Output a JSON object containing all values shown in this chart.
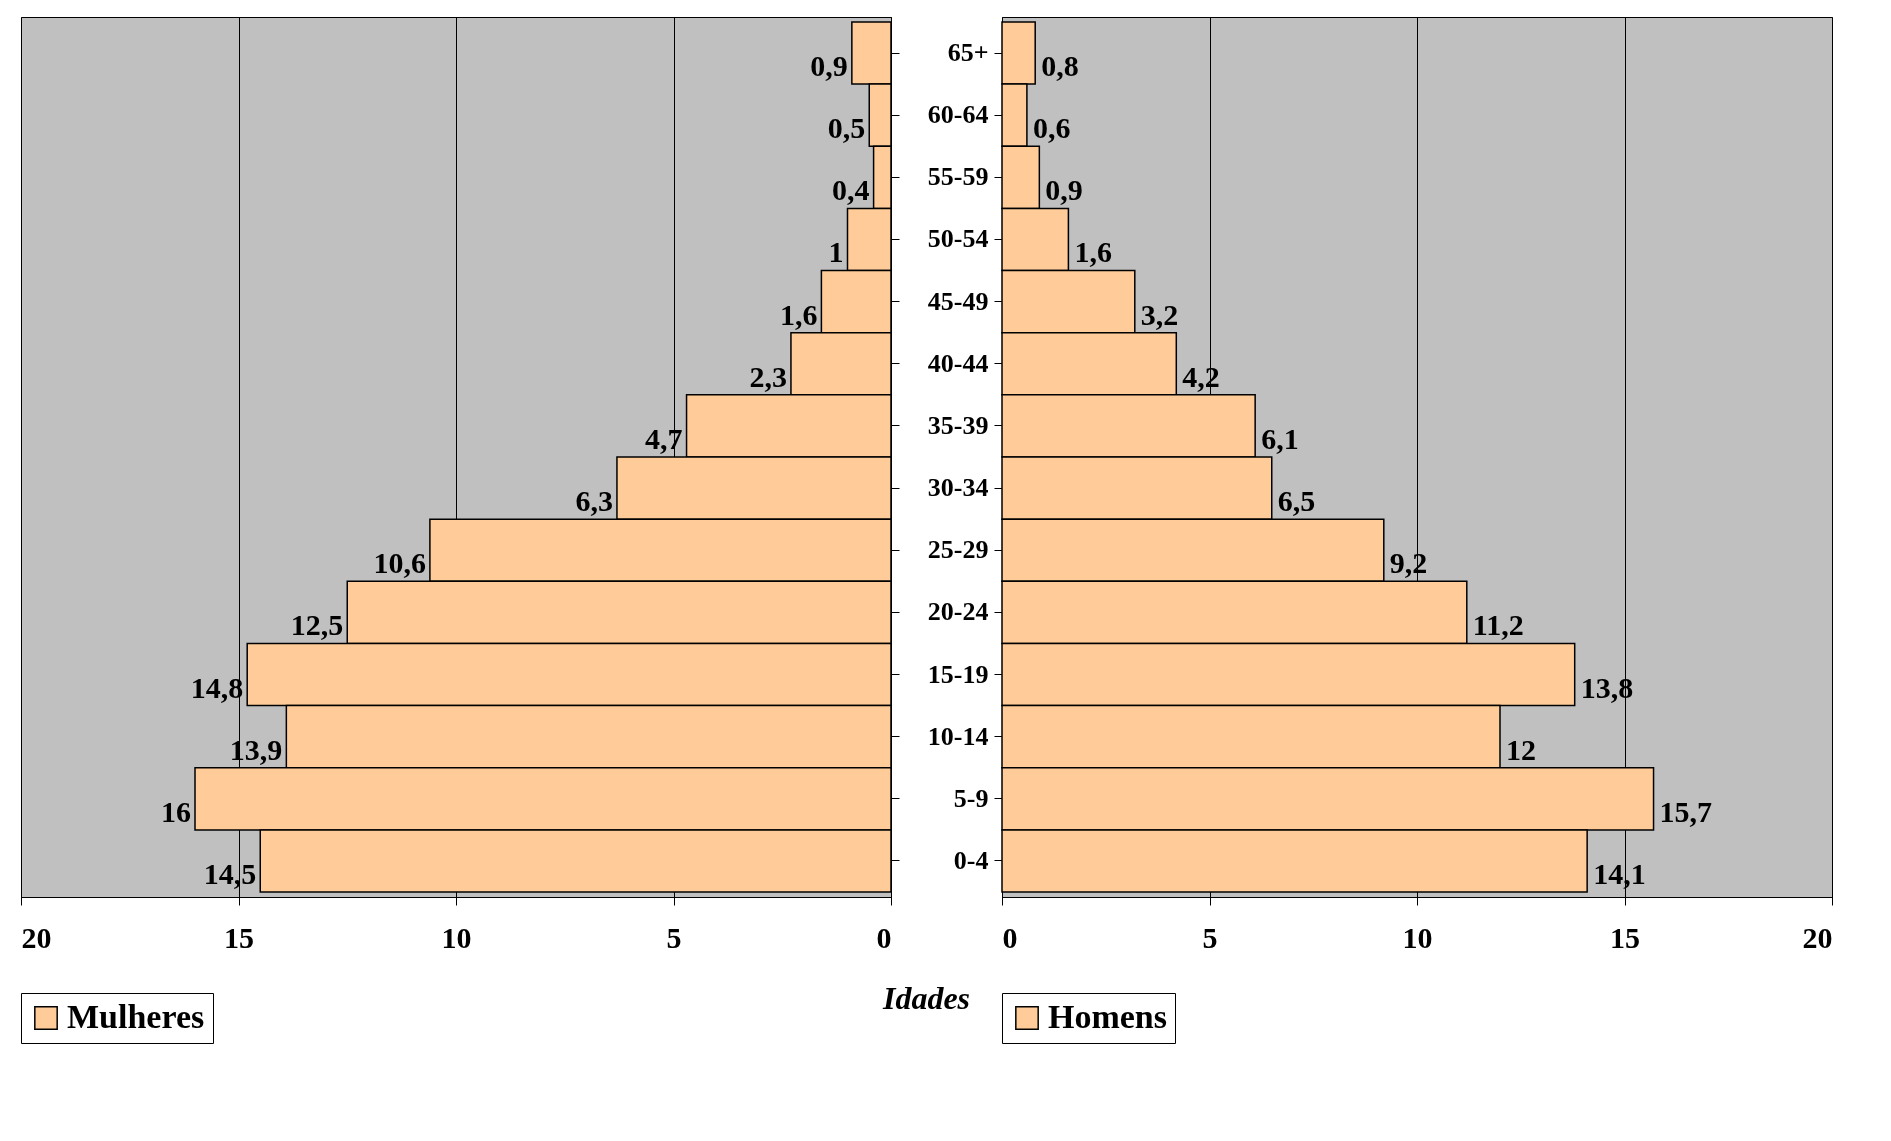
{
  "chart_data": [
    {
      "type": "bar",
      "orientation": "horizontal",
      "categories": [
        null,
        null,
        null,
        null,
        null,
        null,
        null,
        null,
        null,
        null,
        null,
        null,
        null,
        null
      ],
      "series": [
        {
          "name": "Mulheres",
          "color": "#ffcc99",
          "values": [
            0.9,
            0.5,
            0.4,
            1,
            1.6,
            2.3,
            4.7,
            6.3,
            10.6,
            12.5,
            14.8,
            13.9,
            16,
            14.5
          ],
          "value_labels": [
            "0,9",
            "0,5",
            "0,4",
            "1",
            "1,6",
            "2,3",
            "4,7",
            "6,3",
            "10,6",
            "12,5",
            "14,8",
            "13,9",
            "16",
            "14,5"
          ]
        }
      ],
      "xlim": [
        20,
        0
      ],
      "xticks": [
        20,
        15,
        10,
        5,
        0
      ],
      "grid": "x",
      "legend": "bottom",
      "annotations": [
        "Idades"
      ]
    },
    {
      "type": "bar",
      "orientation": "horizontal",
      "categories": [
        "65+",
        "60-64",
        "55-59",
        "50-54",
        "45-49",
        "40-44",
        "35-39",
        "30-34",
        "25-29",
        "20-24",
        "15-19",
        "10-14",
        "5-9",
        "0-4"
      ],
      "series": [
        {
          "name": "Homens",
          "color": "#ffcc99",
          "values": [
            0.8,
            0.6,
            0.9,
            1.6,
            3.2,
            4.2,
            6.1,
            6.5,
            9.2,
            11.2,
            13.8,
            12,
            15.7,
            14.1
          ],
          "value_labels": [
            "0,8",
            "0,6",
            "0,9",
            "1,6",
            "3,2",
            "4,2",
            "6,1",
            "6,5",
            "9,2",
            "11,2",
            "13,8",
            "12",
            "15,7",
            "14,1"
          ]
        }
      ],
      "xlim": [
        0,
        20
      ],
      "xticks": [
        0,
        5,
        10,
        15,
        20
      ],
      "grid": "x",
      "legend": "bottom"
    }
  ]
}
